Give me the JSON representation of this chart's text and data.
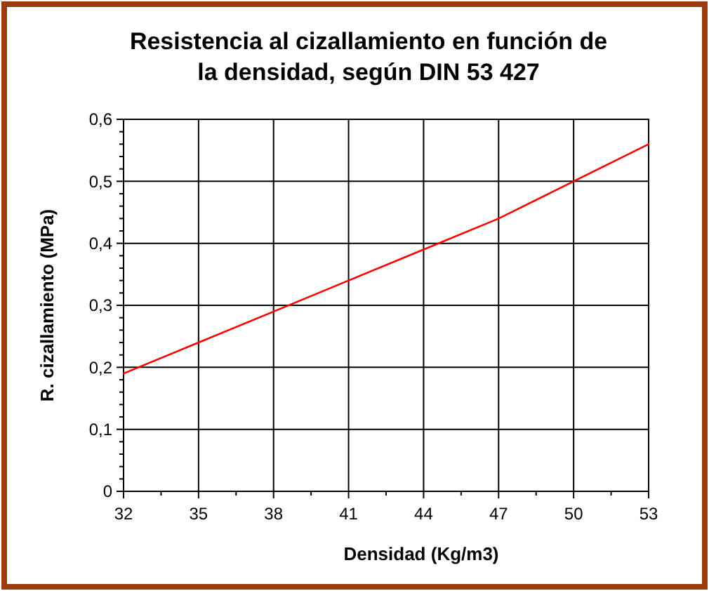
{
  "chart_data": {
    "type": "line",
    "title": "Resistencia al cizallamiento en función de la densidad, según DIN 53 427",
    "xlabel": "Densidad (Kg/m3)",
    "ylabel": "R. cizallamiento (MPa)",
    "x": [
      32,
      35,
      38,
      41,
      44,
      47,
      50,
      53
    ],
    "series": [
      {
        "color": "#ff0000",
        "values": [
          0.19,
          0.24,
          0.29,
          0.34,
          0.39,
          0.44,
          0.5,
          0.56
        ]
      }
    ],
    "xlim": [
      32,
      53
    ],
    "xticks": [
      32,
      35,
      38,
      41,
      44,
      47,
      50,
      53
    ],
    "ylim": [
      0,
      0.6
    ],
    "yticks": [
      {
        "value": 0,
        "label": "0"
      },
      {
        "value": 0.1,
        "label": "0,1"
      },
      {
        "value": 0.2,
        "label": "0,2"
      },
      {
        "value": 0.3,
        "label": "0,3"
      },
      {
        "value": 0.4,
        "label": "0,4"
      },
      {
        "value": 0.5,
        "label": "0,5"
      },
      {
        "value": 0.6,
        "label": "0,6"
      }
    ],
    "grid": true,
    "marker": "none",
    "line_style": "solid"
  }
}
